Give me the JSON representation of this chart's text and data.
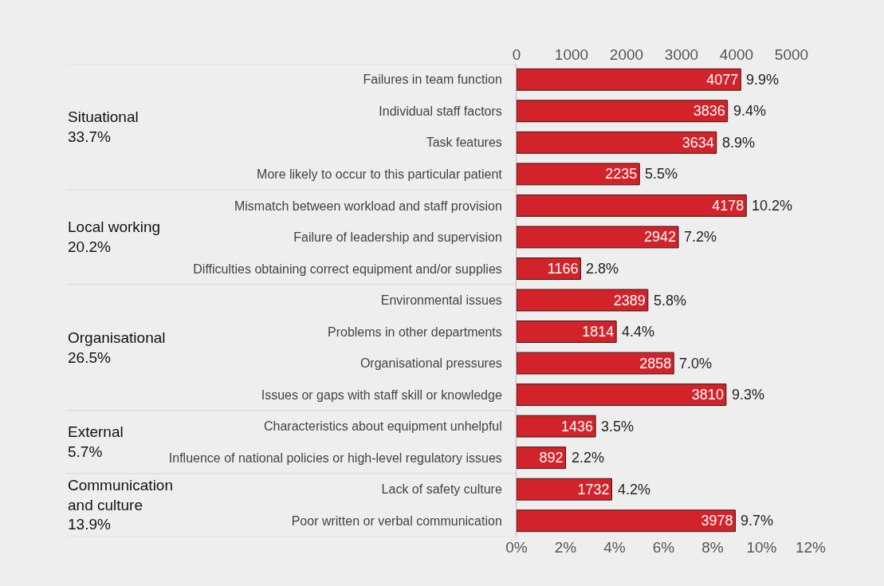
{
  "chart_data": {
    "type": "bar",
    "orientation": "horizontal",
    "categories": [
      "Failures in team function",
      "Individual staff factors",
      "Task features",
      "More likely to occur to this particular patient",
      "Mismatch between workload and staff provision",
      "Failure of leadership and supervision",
      "Difficulties obtaining correct equipment and/or supplies",
      "Environmental issues",
      "Problems in other departments",
      "Organisational pressures",
      "Issues or gaps with staff skill or knowledge",
      "Characteristics about equipment unhelpful",
      "Influence of national policies or high-level regulatory issues",
      "Lack of safety culture",
      "Poor written or verbal communication"
    ],
    "series": [
      {
        "color": "#d2232a",
        "axis": "x2",
        "values": [
          4077,
          3836,
          3634,
          2235,
          4178,
          2942,
          1166,
          2389,
          1814,
          2858,
          3810,
          1436,
          892,
          1732,
          3978
        ]
      }
    ],
    "data_labels": true,
    "x2lim": [
      0,
      5000
    ],
    "x2ticks": [
      0,
      1000,
      2000,
      3000,
      4000,
      5000
    ],
    "xlim": [
      0,
      12
    ],
    "xticks": [
      {
        "value": 0,
        "label": "0%"
      },
      {
        "value": 2,
        "label": "2%"
      },
      {
        "value": 4,
        "label": "4%"
      },
      {
        "value": 6,
        "label": "6%"
      },
      {
        "value": 8,
        "label": "8%"
      },
      {
        "value": 10,
        "label": "10%"
      },
      {
        "value": 12,
        "label": "12%"
      }
    ],
    "grid": false,
    "legend": false,
    "annotations": [
      "Situational\n33.7%",
      "Local working\n20.2%",
      "Organisational\n26.5%",
      "External\n5.7%",
      "Communication\nand culture\n13.9%",
      "9.9%",
      "9.4%",
      "8.9%",
      "5.5%",
      "10.2%",
      "7.2%",
      "2.8%",
      "5.8%",
      "4.4%",
      "7.0%",
      "9.3%",
      "3.5%",
      "2.2%",
      "4.2%",
      "9.7%"
    ]
  }
}
